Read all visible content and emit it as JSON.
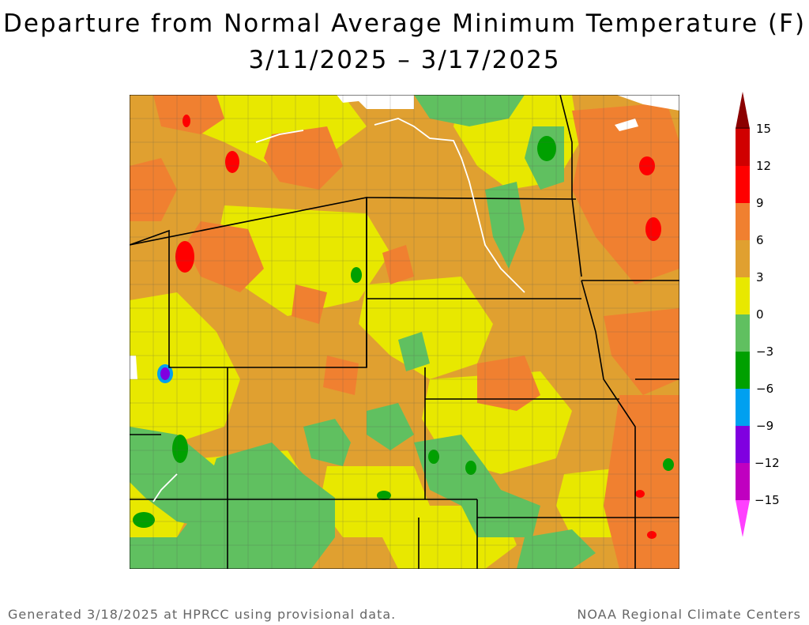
{
  "title": {
    "line1": "Departure from Normal Average Minimum Temperature (F)",
    "line2": "3/11/2025 – 3/17/2025"
  },
  "legend": {
    "labels": [
      "15",
      "12",
      "9",
      "6",
      "3",
      "0",
      "−3",
      "−6",
      "−9",
      "−12",
      "−15"
    ],
    "colors": [
      "#8B0000",
      "#D00000",
      "#FF0000",
      "#F08030",
      "#E0A030",
      "#E8E800",
      "#60C060",
      "#00A000",
      "#00A0F0",
      "#8000E0",
      "#C000C0",
      "#FF40FF"
    ]
  },
  "footer": {
    "left": "Generated 3/18/2025 at HPRCC using provisional data.",
    "right": "NOAA Regional Climate Centers"
  }
}
